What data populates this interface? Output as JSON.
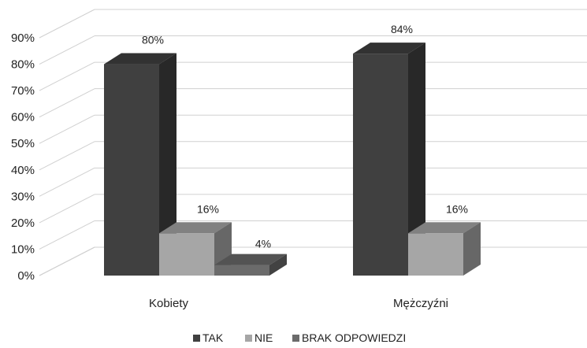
{
  "chart_data": {
    "type": "bar",
    "categories": [
      "Kobiety",
      "Mężczyźni"
    ],
    "series": [
      {
        "name": "TAK",
        "values": [
          80,
          84
        ],
        "labels": [
          "80%",
          "84%"
        ],
        "color": "#404040"
      },
      {
        "name": "NIE",
        "values": [
          16,
          16
        ],
        "labels": [
          "16%",
          "16%"
        ],
        "color": "#a6a6a6"
      },
      {
        "name": "BRAK ODPOWIEDZI",
        "values": [
          4,
          null
        ],
        "labels": [
          "4%",
          ""
        ],
        "color": "#6b6b6b"
      }
    ],
    "ylim": [
      0,
      90
    ],
    "yticks": [
      "0%",
      "10%",
      "20%",
      "30%",
      "40%",
      "50%",
      "60%",
      "70%",
      "80%",
      "90%"
    ],
    "grid": true,
    "legend": "bottom",
    "style": "3d"
  }
}
